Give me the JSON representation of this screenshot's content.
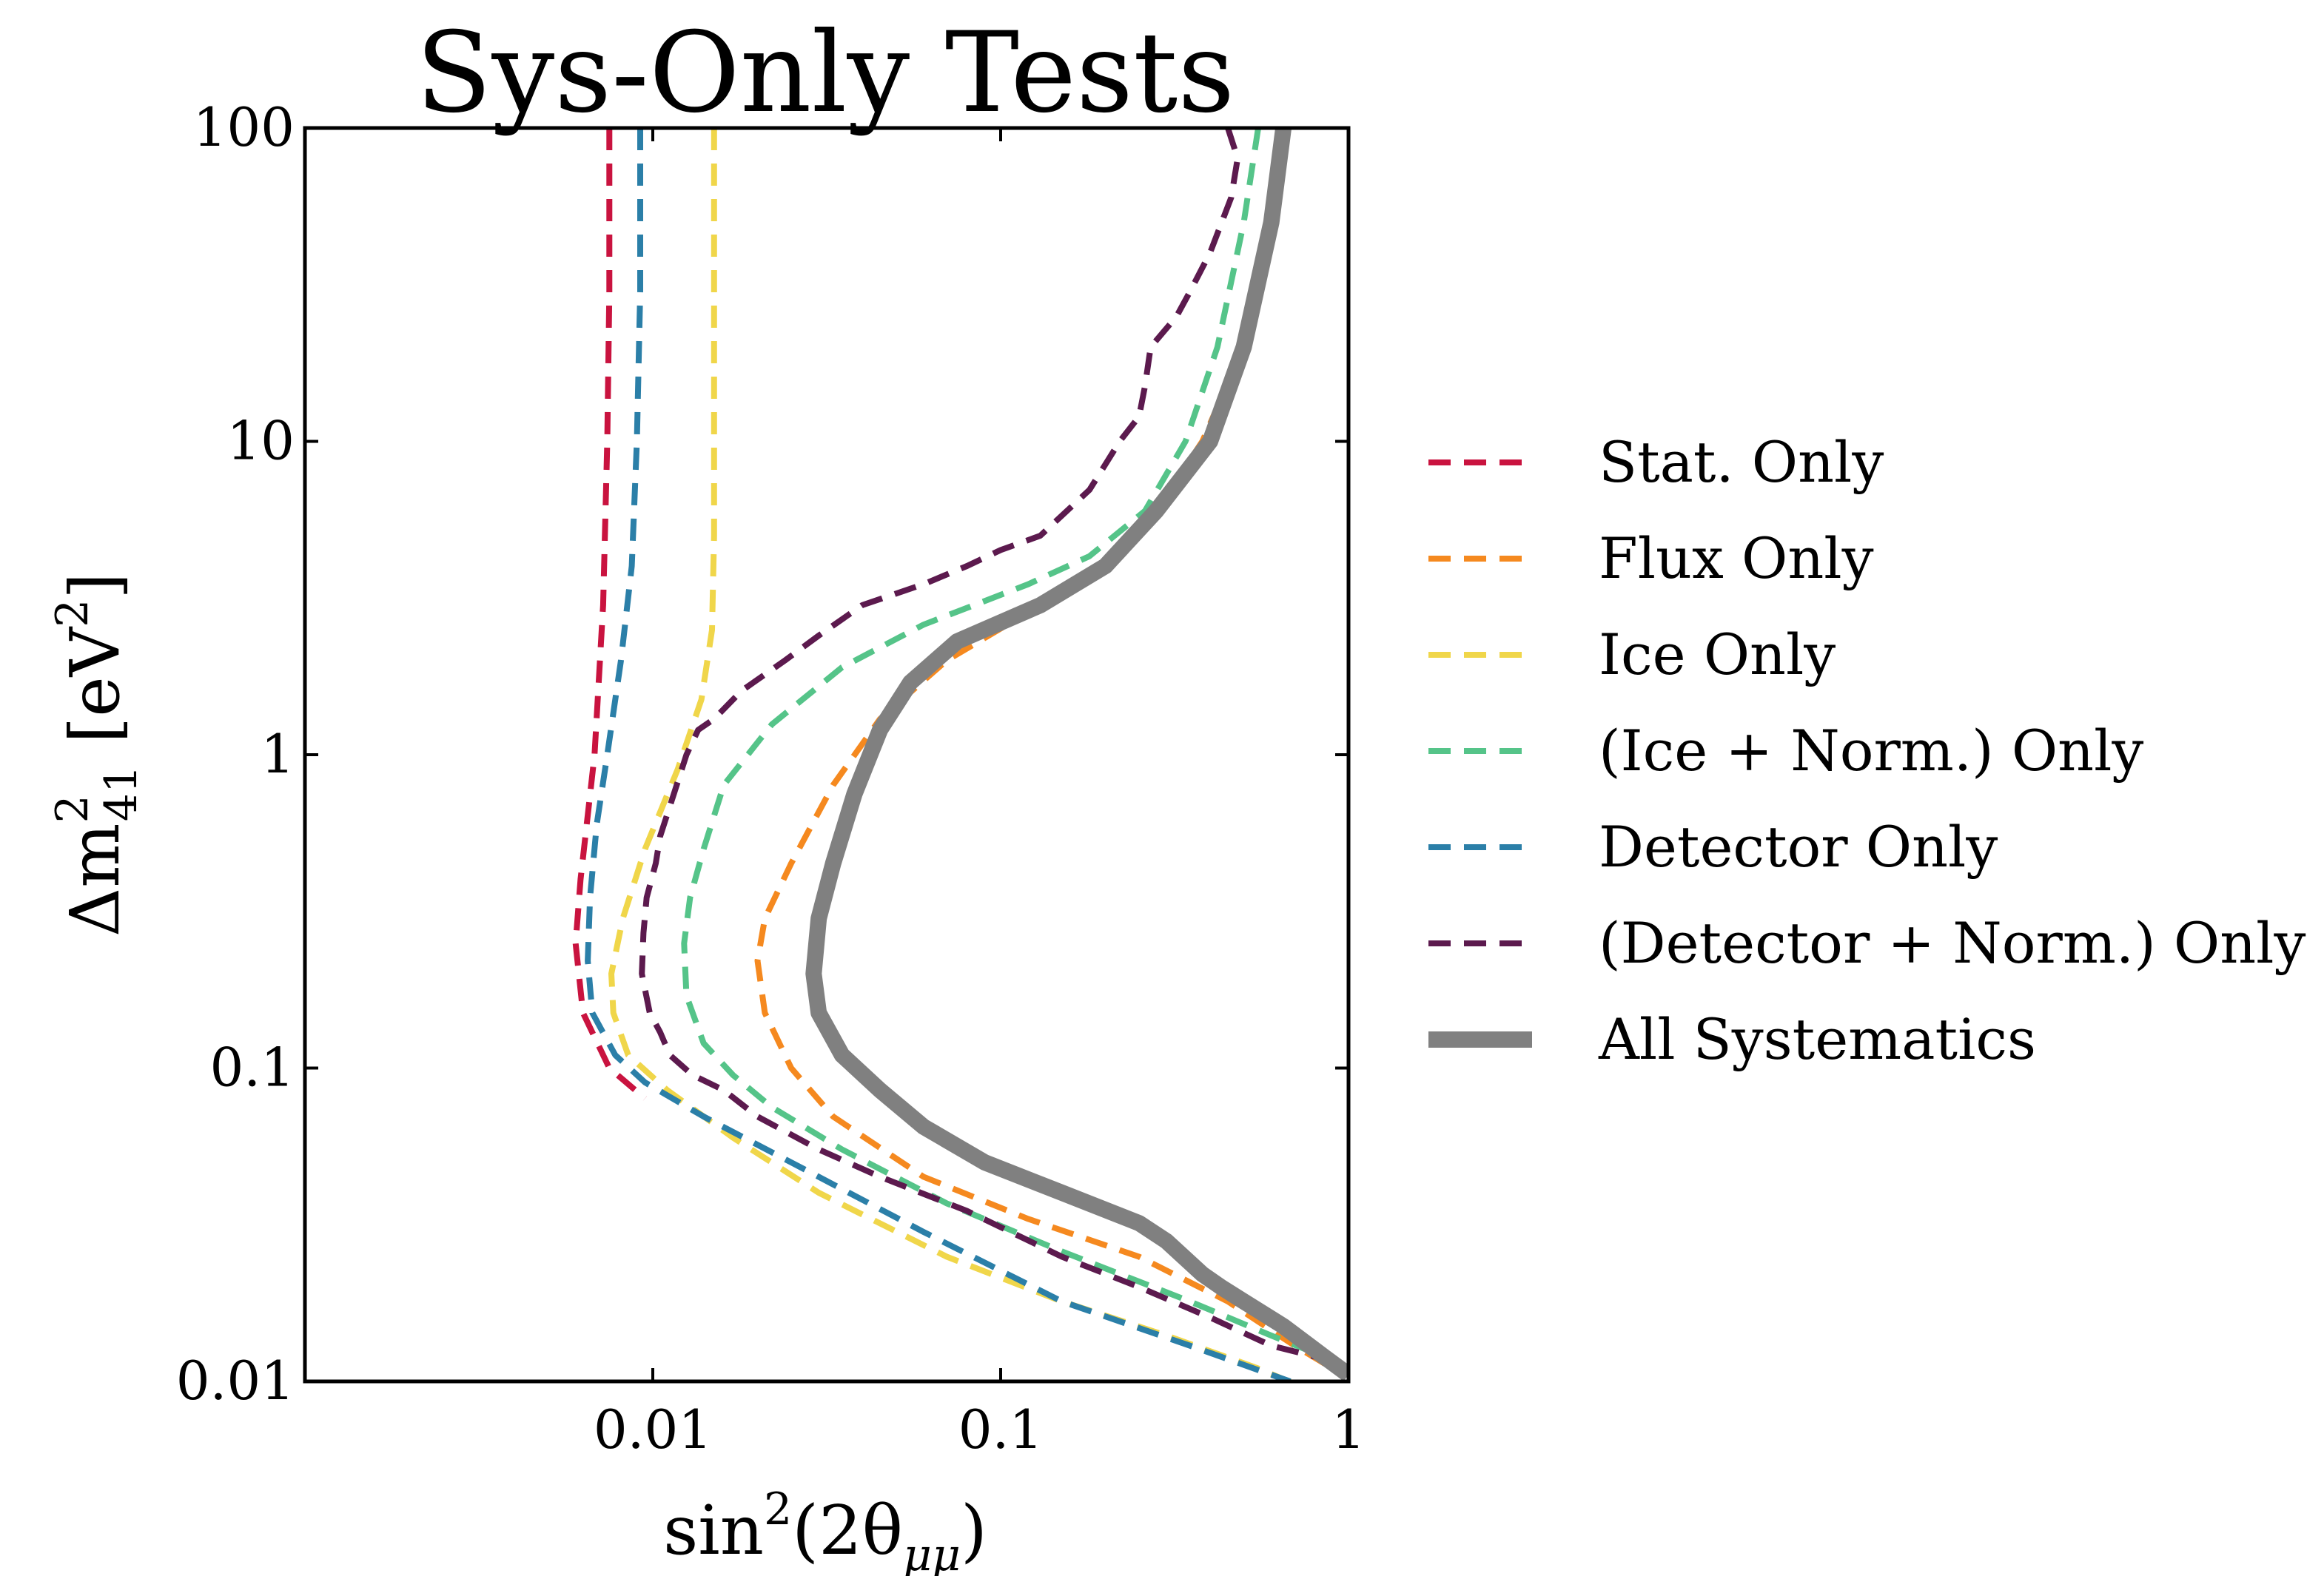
{
  "chart_data": {
    "type": "line",
    "title": "Sys-Only Tests",
    "xlabel": "sin²(2θ_μμ)",
    "xlabel_parts": {
      "base": "sin",
      "sup": "2",
      "mid": "(2θ",
      "sub": "μμ",
      "end": ")"
    },
    "ylabel": "Δm²₄₁ [eV²]",
    "ylabel_parts": {
      "base": "Δm",
      "sup": "2",
      "sub": "41",
      "mid": " [eV",
      "unit_sup": "2",
      "end": "]"
    },
    "x_scale": "log",
    "y_scale": "log",
    "xlim": [
      0.001,
      1
    ],
    "ylim": [
      0.01,
      100
    ],
    "x_ticks": [
      {
        "value": 0.01,
        "label": "0.01"
      },
      {
        "value": 0.1,
        "label": "0.1"
      },
      {
        "value": 1,
        "label": "1"
      }
    ],
    "y_ticks": [
      {
        "value": 0.01,
        "label": "0.01"
      },
      {
        "value": 0.1,
        "label": "0.1"
      },
      {
        "value": 1,
        "label": "1"
      },
      {
        "value": 10,
        "label": "10"
      },
      {
        "value": 100,
        "label": "100"
      }
    ],
    "grid": false,
    "legend_position": "right",
    "series": [
      {
        "name": "Stat. Only",
        "color": "#c9133f",
        "dashed": true,
        "points": [
          [
            0.0075,
            100
          ],
          [
            0.0075,
            30
          ],
          [
            0.0074,
            10
          ],
          [
            0.0072,
            3
          ],
          [
            0.0068,
            1
          ],
          [
            0.0062,
            0.4
          ],
          [
            0.006,
            0.25
          ],
          [
            0.0063,
            0.15
          ],
          [
            0.0075,
            0.1
          ],
          [
            0.0095,
            0.08
          ]
        ]
      },
      {
        "name": "Flux Only",
        "color": "#f5891f",
        "dashed": true,
        "points": [
          [
            0.65,
            100
          ],
          [
            0.6,
            50
          ],
          [
            0.5,
            20
          ],
          [
            0.38,
            10
          ],
          [
            0.28,
            6
          ],
          [
            0.2,
            4
          ],
          [
            0.13,
            3
          ],
          [
            0.07,
            2
          ],
          [
            0.045,
            1.3
          ],
          [
            0.033,
            0.8
          ],
          [
            0.025,
            0.45
          ],
          [
            0.021,
            0.3
          ],
          [
            0.02,
            0.22
          ],
          [
            0.021,
            0.15
          ],
          [
            0.025,
            0.1
          ],
          [
            0.033,
            0.07
          ],
          [
            0.06,
            0.045
          ],
          [
            0.12,
            0.033
          ],
          [
            0.25,
            0.025
          ],
          [
            0.45,
            0.018
          ],
          [
            0.7,
            0.013
          ],
          [
            0.9,
            0.011
          ],
          [
            1,
            0.0105
          ]
        ]
      },
      {
        "name": "Ice Only",
        "color": "#f0d64a",
        "dashed": true,
        "points": [
          [
            0.015,
            100
          ],
          [
            0.015,
            50
          ],
          [
            0.015,
            20
          ],
          [
            0.015,
            10
          ],
          [
            0.015,
            5
          ],
          [
            0.0148,
            2.5
          ],
          [
            0.0138,
            1.5
          ],
          [
            0.0118,
            0.9
          ],
          [
            0.0095,
            0.5
          ],
          [
            0.0082,
            0.3
          ],
          [
            0.0076,
            0.2
          ],
          [
            0.0077,
            0.15
          ],
          [
            0.0085,
            0.11
          ],
          [
            0.011,
            0.085
          ],
          [
            0.017,
            0.06
          ],
          [
            0.03,
            0.04
          ],
          [
            0.07,
            0.025
          ],
          [
            0.15,
            0.018
          ],
          [
            0.3,
            0.014
          ],
          [
            0.55,
            0.011
          ],
          [
            0.75,
            0.0095
          ]
        ]
      },
      {
        "name": "(Ice + Norm.) Only",
        "color": "#55c489",
        "dashed": true,
        "points": [
          [
            0.55,
            100
          ],
          [
            0.5,
            50
          ],
          [
            0.42,
            20
          ],
          [
            0.34,
            10
          ],
          [
            0.26,
            6
          ],
          [
            0.18,
            4.3
          ],
          [
            0.12,
            3.5
          ],
          [
            0.06,
            2.6
          ],
          [
            0.035,
            1.9
          ],
          [
            0.022,
            1.25
          ],
          [
            0.016,
            0.8
          ],
          [
            0.014,
            0.5
          ],
          [
            0.0128,
            0.35
          ],
          [
            0.0123,
            0.25
          ],
          [
            0.0125,
            0.17
          ],
          [
            0.014,
            0.12
          ],
          [
            0.017,
            0.095
          ],
          [
            0.022,
            0.075
          ],
          [
            0.035,
            0.055
          ],
          [
            0.07,
            0.037
          ],
          [
            0.15,
            0.026
          ],
          [
            0.35,
            0.018
          ],
          [
            0.6,
            0.014
          ],
          [
            0.85,
            0.012
          ],
          [
            1,
            0.0105
          ]
        ]
      },
      {
        "name": "Detector Only",
        "color": "#2b7fa8",
        "dashed": true,
        "points": [
          [
            0.0092,
            100
          ],
          [
            0.0092,
            30
          ],
          [
            0.009,
            10
          ],
          [
            0.0087,
            4
          ],
          [
            0.0081,
            2
          ],
          [
            0.0074,
            1
          ],
          [
            0.0069,
            0.6
          ],
          [
            0.0066,
            0.35
          ],
          [
            0.0065,
            0.22
          ],
          [
            0.0067,
            0.15
          ],
          [
            0.0078,
            0.11
          ],
          [
            0.0095,
            0.09
          ],
          [
            0.014,
            0.07
          ],
          [
            0.025,
            0.05
          ],
          [
            0.06,
            0.03
          ],
          [
            0.15,
            0.018
          ],
          [
            0.35,
            0.013
          ],
          [
            0.6,
            0.0105
          ],
          [
            0.68,
            0.01
          ]
        ]
      },
      {
        "name": "(Detector + Norm.) Only",
        "color": "#5c1a4e",
        "dashed": true,
        "points": [
          [
            0.45,
            100
          ],
          [
            0.48,
            80
          ],
          [
            0.46,
            60
          ],
          [
            0.4,
            40
          ],
          [
            0.35,
            30
          ],
          [
            0.32,
            25
          ],
          [
            0.27,
            20
          ],
          [
            0.26,
            15
          ],
          [
            0.25,
            12
          ],
          [
            0.22,
            10
          ],
          [
            0.18,
            7
          ],
          [
            0.13,
            5
          ],
          [
            0.1,
            4.5
          ],
          [
            0.08,
            4
          ],
          [
            0.06,
            3.5
          ],
          [
            0.04,
            3
          ],
          [
            0.03,
            2.4
          ],
          [
            0.024,
            2
          ],
          [
            0.018,
            1.6
          ],
          [
            0.015,
            1.3
          ],
          [
            0.0135,
            1.2
          ],
          [
            0.0125,
            1
          ],
          [
            0.0115,
            0.75
          ],
          [
            0.0105,
            0.55
          ],
          [
            0.0102,
            0.45
          ],
          [
            0.0096,
            0.35
          ],
          [
            0.0094,
            0.27
          ],
          [
            0.0093,
            0.2
          ],
          [
            0.0098,
            0.15
          ],
          [
            0.0105,
            0.13
          ],
          [
            0.0112,
            0.11
          ],
          [
            0.013,
            0.095
          ],
          [
            0.016,
            0.085
          ],
          [
            0.02,
            0.07
          ],
          [
            0.03,
            0.055
          ],
          [
            0.045,
            0.045
          ],
          [
            0.08,
            0.035
          ],
          [
            0.15,
            0.025
          ],
          [
            0.25,
            0.02
          ],
          [
            0.4,
            0.016
          ],
          [
            0.6,
            0.013
          ],
          [
            0.8,
            0.012
          ],
          [
            1,
            0.011
          ]
        ]
      },
      {
        "name": "All Systematics",
        "color": "#808080",
        "dashed": false,
        "points": [
          [
            0.65,
            100
          ],
          [
            0.6,
            50
          ],
          [
            0.5,
            20
          ],
          [
            0.4,
            10
          ],
          [
            0.28,
            6
          ],
          [
            0.2,
            4
          ],
          [
            0.13,
            3
          ],
          [
            0.075,
            2.3
          ],
          [
            0.055,
            1.7
          ],
          [
            0.045,
            1.2
          ],
          [
            0.038,
            0.75
          ],
          [
            0.033,
            0.45
          ],
          [
            0.03,
            0.3
          ],
          [
            0.029,
            0.2
          ],
          [
            0.03,
            0.15
          ],
          [
            0.035,
            0.11
          ],
          [
            0.045,
            0.085
          ],
          [
            0.06,
            0.065
          ],
          [
            0.09,
            0.05
          ],
          [
            0.15,
            0.04
          ],
          [
            0.25,
            0.032
          ],
          [
            0.3,
            0.028
          ],
          [
            0.38,
            0.022
          ],
          [
            0.43,
            0.02
          ],
          [
            0.5,
            0.018
          ],
          [
            0.65,
            0.015
          ],
          [
            0.85,
            0.012
          ],
          [
            1,
            0.0105
          ]
        ]
      }
    ]
  }
}
